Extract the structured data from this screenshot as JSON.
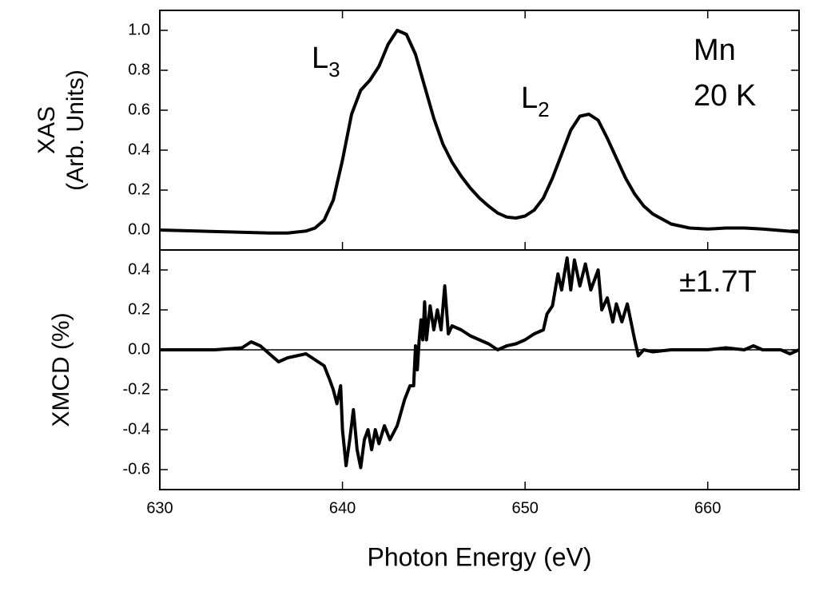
{
  "chart_data": [
    {
      "type": "line",
      "ylabel": [
        "XAS",
        "(Arb. Units)"
      ],
      "annotations": [
        {
          "text": "L",
          "sub": "3"
        },
        {
          "text": "L",
          "sub": "2"
        },
        {
          "text": "Mn"
        },
        {
          "text": "20 K"
        }
      ],
      "xlim": [
        630,
        665
      ],
      "ylim": [
        -0.1,
        1.1
      ],
      "yticks": [
        {
          "value": 0,
          "label": "0.0"
        },
        0.2,
        0.4,
        0.6,
        0.8,
        {
          "value": 1,
          "label": "1.0"
        }
      ],
      "series": [
        {
          "color": "#000000",
          "x": [
            630,
            632,
            634,
            636,
            637,
            638,
            638.5,
            639,
            639.5,
            640,
            640.5,
            641,
            641.5,
            642,
            642.5,
            643,
            643.5,
            644,
            644.5,
            645,
            645.5,
            646,
            646.5,
            647,
            647.5,
            648,
            648.5,
            649,
            649.5,
            650,
            650.5,
            651,
            651.5,
            652,
            652.5,
            653,
            653.5,
            654,
            654.5,
            655,
            655.5,
            656,
            656.5,
            657,
            658,
            659,
            660,
            661,
            662,
            663,
            665
          ],
          "values": [
            0,
            -0.005,
            -0.01,
            -0.015,
            -0.015,
            -0.005,
            0.01,
            0.05,
            0.15,
            0.35,
            0.58,
            0.7,
            0.75,
            0.82,
            0.93,
            1.0,
            0.98,
            0.88,
            0.72,
            0.56,
            0.43,
            0.34,
            0.27,
            0.21,
            0.16,
            0.12,
            0.085,
            0.065,
            0.06,
            0.07,
            0.1,
            0.16,
            0.26,
            0.38,
            0.5,
            0.57,
            0.58,
            0.55,
            0.46,
            0.36,
            0.26,
            0.18,
            0.12,
            0.08,
            0.03,
            0.01,
            0.005,
            0.01,
            0.01,
            0.005,
            -0.01
          ]
        }
      ]
    },
    {
      "type": "line",
      "ylabel": [
        "XMCD (%)"
      ],
      "xlabel": "Photon Energy (eV)",
      "annotations": [
        {
          "text": "±1.7T"
        }
      ],
      "xlim": [
        630,
        665
      ],
      "xticks": [
        630,
        640,
        650,
        660
      ],
      "ylim": [
        -0.7,
        0.5
      ],
      "yticks": [
        -0.6,
        -0.4,
        -0.2,
        {
          "value": 0,
          "label": "0.0"
        },
        0.2,
        0.4
      ],
      "reference_line": 0,
      "series": [
        {
          "color": "#000000",
          "x": [
            630,
            633,
            634.5,
            635,
            635.5,
            636,
            636.5,
            637,
            637.5,
            638,
            638.5,
            639,
            639.3,
            639.5,
            639.7,
            639.9,
            640,
            640.2,
            640.4,
            640.6,
            640.8,
            641,
            641.2,
            641.4,
            641.6,
            641.8,
            642,
            642.3,
            642.6,
            643,
            643.4,
            643.7,
            643.9,
            644,
            644.1,
            644.2,
            644.3,
            644.4,
            644.5,
            644.6,
            644.8,
            645,
            645.2,
            645.4,
            645.6,
            645.8,
            646,
            646.5,
            647,
            648,
            648.5,
            649,
            649.5,
            650,
            650.5,
            651,
            651.2,
            651.5,
            651.8,
            652,
            652.3,
            652.5,
            652.7,
            653,
            653.3,
            653.6,
            654,
            654.2,
            654.5,
            654.8,
            655,
            655.3,
            655.6,
            656,
            656.2,
            656.5,
            657,
            658,
            660,
            661,
            662,
            662.5,
            663,
            664,
            664.5,
            665
          ],
          "values": [
            0,
            0,
            0.01,
            0.04,
            0.02,
            -0.02,
            -0.06,
            -0.04,
            -0.03,
            -0.02,
            -0.05,
            -0.08,
            -0.15,
            -0.2,
            -0.27,
            -0.18,
            -0.4,
            -0.58,
            -0.45,
            -0.3,
            -0.5,
            -0.59,
            -0.45,
            -0.4,
            -0.5,
            -0.4,
            -0.47,
            -0.38,
            -0.45,
            -0.38,
            -0.25,
            -0.18,
            -0.18,
            0.02,
            -0.1,
            0.05,
            0.15,
            0.05,
            0.24,
            0.05,
            0.22,
            0.1,
            0.2,
            0.1,
            0.32,
            0.08,
            0.12,
            0.1,
            0.07,
            0.03,
            0,
            0.02,
            0.03,
            0.05,
            0.08,
            0.1,
            0.18,
            0.22,
            0.38,
            0.3,
            0.46,
            0.3,
            0.45,
            0.32,
            0.43,
            0.3,
            0.4,
            0.2,
            0.26,
            0.14,
            0.23,
            0.14,
            0.23,
            0.05,
            -0.03,
            0,
            -0.01,
            0,
            0,
            0.01,
            0,
            0.02,
            0,
            0,
            -0.02,
            0
          ]
        }
      ]
    }
  ]
}
